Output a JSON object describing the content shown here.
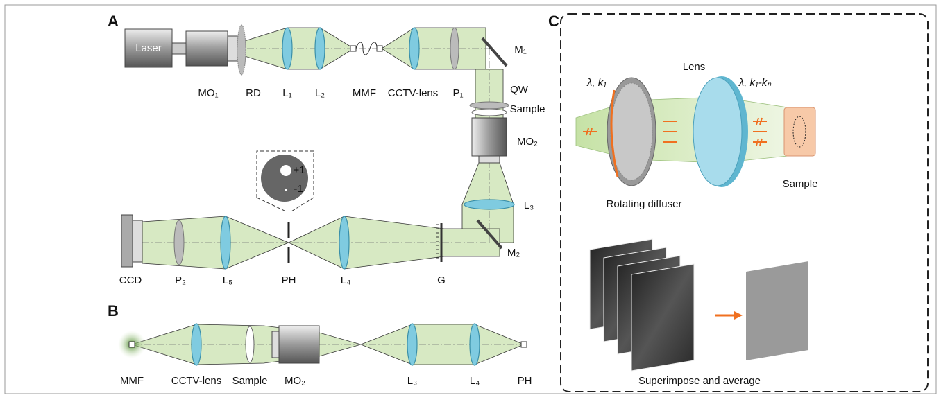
{
  "panels": [
    {
      "label": "A",
      "labels": [
        "Laser",
        "MO₁",
        "RD",
        "L₁",
        "L₂",
        "MMF",
        "CCTV-lens",
        "P₁",
        "M₁",
        "QW",
        "Sample",
        "MO₂",
        "L₃",
        "M₂",
        "CCD",
        "P₂",
        "L₅",
        "PH",
        "L₄",
        "G",
        "+1",
        "-1"
      ]
    },
    {
      "label": "B",
      "labels": [
        "MMF",
        "CCTV-lens",
        "Sample",
        "MO₂",
        "L₃",
        "L₄",
        "PH"
      ]
    },
    {
      "label": "C",
      "labels": [
        "λ, k₁",
        "Lens",
        "λ, k₁-kₙ",
        "Rotating diffuser",
        "Sample",
        "Superimpose and average"
      ]
    }
  ]
}
